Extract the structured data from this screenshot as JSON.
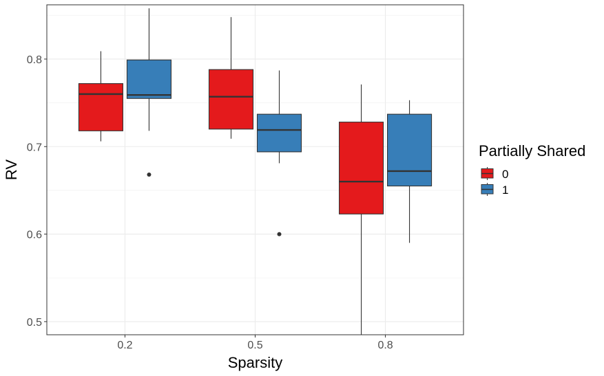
{
  "chart_data": {
    "type": "boxplot",
    "title": "",
    "xlabel": "Sparsity",
    "ylabel": "RV",
    "categories": [
      "0.2",
      "0.5",
      "0.8"
    ],
    "ylim": [
      0.485,
      0.862
    ],
    "y_ticks": [
      0.5,
      0.6,
      0.7,
      0.8
    ],
    "y_tick_labels": [
      "0.5",
      "0.6",
      "0.7",
      "0.8"
    ],
    "grid": true,
    "legend": {
      "title": "Partially Shared",
      "position": "right"
    },
    "series": [
      {
        "name": "0",
        "color": "#e41a1c",
        "boxes": [
          {
            "category": "0.2",
            "whisker_low": 0.706,
            "q1": 0.718,
            "median": 0.76,
            "q3": 0.772,
            "whisker_high": 0.809,
            "outliers": []
          },
          {
            "category": "0.5",
            "whisker_low": 0.709,
            "q1": 0.72,
            "median": 0.757,
            "q3": 0.788,
            "whisker_high": 0.848,
            "outliers": []
          },
          {
            "category": "0.8",
            "whisker_low": 0.485,
            "q1": 0.623,
            "median": 0.66,
            "q3": 0.728,
            "whisker_high": 0.771,
            "outliers": []
          }
        ]
      },
      {
        "name": "1",
        "color": "#377eb8",
        "boxes": [
          {
            "category": "0.2",
            "whisker_low": 0.718,
            "q1": 0.755,
            "median": 0.759,
            "q3": 0.799,
            "whisker_high": 0.858,
            "outliers": [
              0.668
            ]
          },
          {
            "category": "0.5",
            "whisker_low": 0.681,
            "q1": 0.694,
            "median": 0.719,
            "q3": 0.737,
            "whisker_high": 0.787,
            "outliers": [
              0.6
            ]
          },
          {
            "category": "0.8",
            "whisker_low": 0.59,
            "q1": 0.655,
            "median": 0.672,
            "q3": 0.737,
            "whisker_high": 0.753,
            "outliers": []
          }
        ]
      }
    ]
  }
}
